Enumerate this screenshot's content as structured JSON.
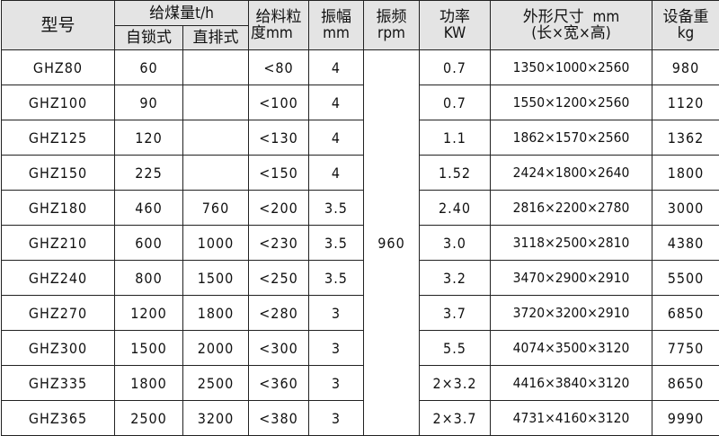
{
  "headers": {
    "model": "型号",
    "capacity": "给煤量t/h",
    "self_lock": "自锁式",
    "direct": "直排式",
    "size_l1": "给料粒",
    "size_l2": "度mm",
    "amp_l1": "振幅",
    "amp_l2": "mm",
    "freq_l1": "振频",
    "freq_l2": "rpm",
    "power_l1": "功率",
    "power_l2": "KW",
    "dims_l1": "外形尺寸  mm",
    "dims_l2": "(长×宽×高)",
    "weight_l1": "设备重",
    "weight_l2": "kg"
  },
  "frequency": "960",
  "rows": [
    {
      "model": "GHZ80",
      "self_lock": "60",
      "direct": "",
      "size": "<80",
      "amp": "4",
      "power": "0.7",
      "dims": "1350×1000×2560",
      "weight": "980"
    },
    {
      "model": "GHZ100",
      "self_lock": "90",
      "direct": "",
      "size": "<100",
      "amp": "4",
      "power": "0.7",
      "dims": "1550×1200×2560",
      "weight": "1120"
    },
    {
      "model": "GHZ125",
      "self_lock": "120",
      "direct": "",
      "size": "<130",
      "amp": "4",
      "power": "1.1",
      "dims": "1862×1570×2560",
      "weight": "1362"
    },
    {
      "model": "GHZ150",
      "self_lock": "225",
      "direct": "",
      "size": "<150",
      "amp": "4",
      "power": "1.52",
      "dims": "2424×1800×2640",
      "weight": "1800"
    },
    {
      "model": "GHZ180",
      "self_lock": "460",
      "direct": "760",
      "size": "<200",
      "amp": "3.5",
      "power": "2.40",
      "dims": "2816×2200×2780",
      "weight": "3000"
    },
    {
      "model": "GHZ210",
      "self_lock": "600",
      "direct": "1000",
      "size": "<230",
      "amp": "3.5",
      "power": "3.0",
      "dims": "3118×2500×2810",
      "weight": "4380"
    },
    {
      "model": "GHZ240",
      "self_lock": "800",
      "direct": "1500",
      "size": "<250",
      "amp": "3.5",
      "power": "3.2",
      "dims": "3470×2900×2910",
      "weight": "5500"
    },
    {
      "model": "GHZ270",
      "self_lock": "1200",
      "direct": "1800",
      "size": "<280",
      "amp": "3",
      "power": "3.7",
      "dims": "3720×3200×2910",
      "weight": "6850"
    },
    {
      "model": "GHZ300",
      "self_lock": "1500",
      "direct": "2000",
      "size": "<300",
      "amp": "3",
      "power": "5.5",
      "dims": "4074×3500×3120",
      "weight": "7750"
    },
    {
      "model": "GHZ335",
      "self_lock": "1800",
      "direct": "2500",
      "size": "<360",
      "amp": "3",
      "power": "2×3.2",
      "dims": "4416×3840×3120",
      "weight": "8650"
    },
    {
      "model": "GHZ365",
      "self_lock": "2500",
      "direct": "3200",
      "size": "<380",
      "amp": "3",
      "power": "2×3.7",
      "dims": "4731×4160×3120",
      "weight": "9990"
    }
  ]
}
